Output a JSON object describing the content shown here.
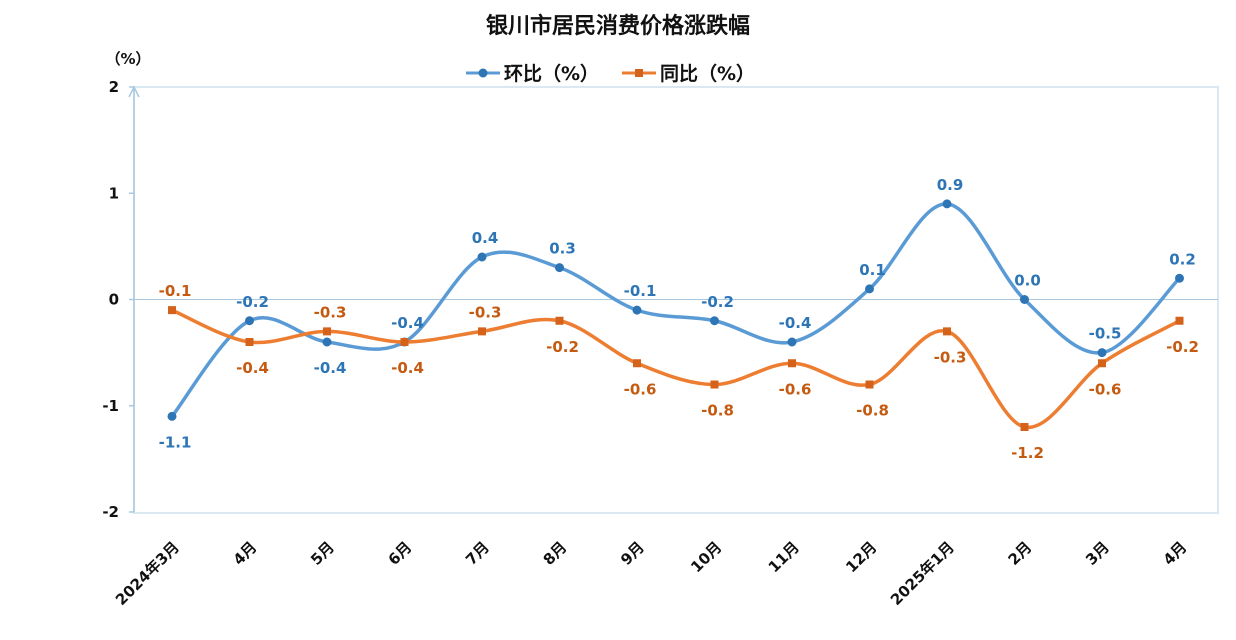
{
  "chart_data": {
    "type": "line",
    "title": "银川市居民消费价格涨跌幅",
    "ylabel": "（%）",
    "ylim": [
      -2,
      2
    ],
    "yticks": [
      "2",
      "1",
      "0",
      "-1",
      "-2"
    ],
    "ytick_values": [
      2,
      1,
      0,
      -1,
      -2
    ],
    "grid": false,
    "legend": "top-center",
    "categories": [
      "2024年3月",
      "4月",
      "5月",
      "6月",
      "7月",
      "8月",
      "9月",
      "10月",
      "11月",
      "12月",
      "2025年1月",
      "2月",
      "3月",
      "4月"
    ],
    "series": [
      {
        "name": "环比（%）",
        "color": "#5B9BD5",
        "label_color": "#2E75B6",
        "marker": "circle",
        "values": [
          -1.1,
          -0.2,
          -0.4,
          -0.4,
          0.4,
          0.3,
          -0.1,
          -0.2,
          -0.4,
          0.1,
          0.9,
          0.0,
          -0.5,
          0.2
        ],
        "labels": [
          "-1.1",
          "-0.2",
          "-0.4",
          "-0.4",
          "0.4",
          "0.3",
          "-0.1",
          "-0.2",
          "-0.4",
          "0.1",
          "0.9",
          "0.0",
          "-0.5",
          "0.2"
        ]
      },
      {
        "name": "同比（%）",
        "color": "#ED7D31",
        "label_color": "#C55A11",
        "marker": "square",
        "values": [
          -0.1,
          -0.4,
          -0.3,
          -0.4,
          -0.3,
          -0.2,
          -0.6,
          -0.8,
          -0.6,
          -0.8,
          -0.3,
          -1.2,
          -0.6,
          -0.2
        ],
        "labels": [
          "-0.1",
          "-0.4",
          "-0.3",
          "-0.4",
          "-0.3",
          "-0.2",
          "-0.6",
          "-0.8",
          "-0.6",
          "-0.8",
          "-0.3",
          "-1.2",
          "-0.6",
          "-0.2"
        ]
      }
    ]
  }
}
